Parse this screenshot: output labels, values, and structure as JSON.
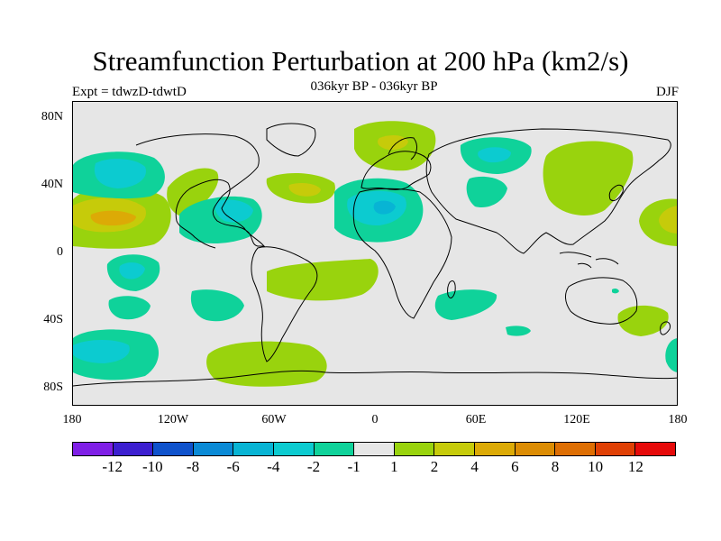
{
  "title": "Streamfunction Perturbation at 200 hPa (km2/s)",
  "subtitle": "036kyr BP - 036kyr BP",
  "left_label": "Expt = tdwzD-tdwtD",
  "right_label": "DJF",
  "y_ticks": [
    "80N",
    "40N",
    "0",
    "40S",
    "80S"
  ],
  "x_ticks": [
    "180",
    "120W",
    "60W",
    "0",
    "60E",
    "120E",
    "180"
  ],
  "colorbar": {
    "colors": [
      "#7f1fe6",
      "#3c1fd0",
      "#0f52cc",
      "#0a8ad6",
      "#08b4d4",
      "#0ccbd0",
      "#0fd29a",
      "#e6e6e6",
      "#99d30d",
      "#c6cb0a",
      "#dcaa06",
      "#dc8c03",
      "#de6e03",
      "#e04005",
      "#e60a0a"
    ],
    "labels": [
      "-12",
      "-10",
      "-8",
      "-6",
      "-4",
      "-2",
      "-1",
      "1",
      "2",
      "4",
      "6",
      "8",
      "10",
      "12"
    ]
  },
  "chart_data": {
    "type": "heatmap",
    "title": "Streamfunction Perturbation at 200 hPa (km2/s)",
    "subtitle": "036kyr BP - 036kyr BP",
    "xlabel": "",
    "ylabel": "",
    "x_range": [
      -180,
      180
    ],
    "y_range": [
      -90,
      90
    ],
    "levels": [
      -12,
      -10,
      -8,
      -6,
      -4,
      -2,
      -1,
      1,
      2,
      4,
      6,
      8,
      10,
      12
    ],
    "features": [
      {
        "name": "positive anomaly North Pacific subtropics",
        "lon": -160,
        "lat": 20,
        "level": 6
      },
      {
        "name": "negative anomaly North Pacific",
        "lon": -150,
        "lat": 47,
        "level": -4
      },
      {
        "name": "positive anomaly western North America",
        "lon": -115,
        "lat": 38,
        "level": 2
      },
      {
        "name": "negative anomaly Caribbean",
        "lon": -75,
        "lat": 23,
        "level": -4
      },
      {
        "name": "positive anomaly North Atlantic",
        "lon": -43,
        "lat": 38,
        "level": 4
      },
      {
        "name": "positive anomaly Northern Europe",
        "lon": 12,
        "lat": 64,
        "level": 4
      },
      {
        "name": "negative anomaly North Africa",
        "lon": 5,
        "lat": 28,
        "level": -6
      },
      {
        "name": "negative anomaly Central Asia",
        "lon": 65,
        "lat": 55,
        "level": -4
      },
      {
        "name": "positive anomaly East Asia",
        "lon": 130,
        "lat": 45,
        "level": 2
      },
      {
        "name": "positive anomaly western Pacific",
        "lon": 178,
        "lat": 22,
        "level": 4
      },
      {
        "name": "negative anomaly South Pacific",
        "lon": -150,
        "lat": -10,
        "level": -4
      },
      {
        "name": "positive anomaly South Atlantic",
        "lon": -20,
        "lat": -15,
        "level": 2
      },
      {
        "name": "negative anomaly Southern Ocean",
        "lon": -160,
        "lat": -58,
        "level": -4
      },
      {
        "name": "positive anomaly Drake Passage",
        "lon": -65,
        "lat": -60,
        "level": 2
      },
      {
        "name": "negative anomaly Southern Indian Ocean",
        "lon": 50,
        "lat": -27,
        "level": -2
      },
      {
        "name": "positive anomaly Tasman Sea",
        "lon": 150,
        "lat": -38,
        "level": 2
      }
    ]
  }
}
